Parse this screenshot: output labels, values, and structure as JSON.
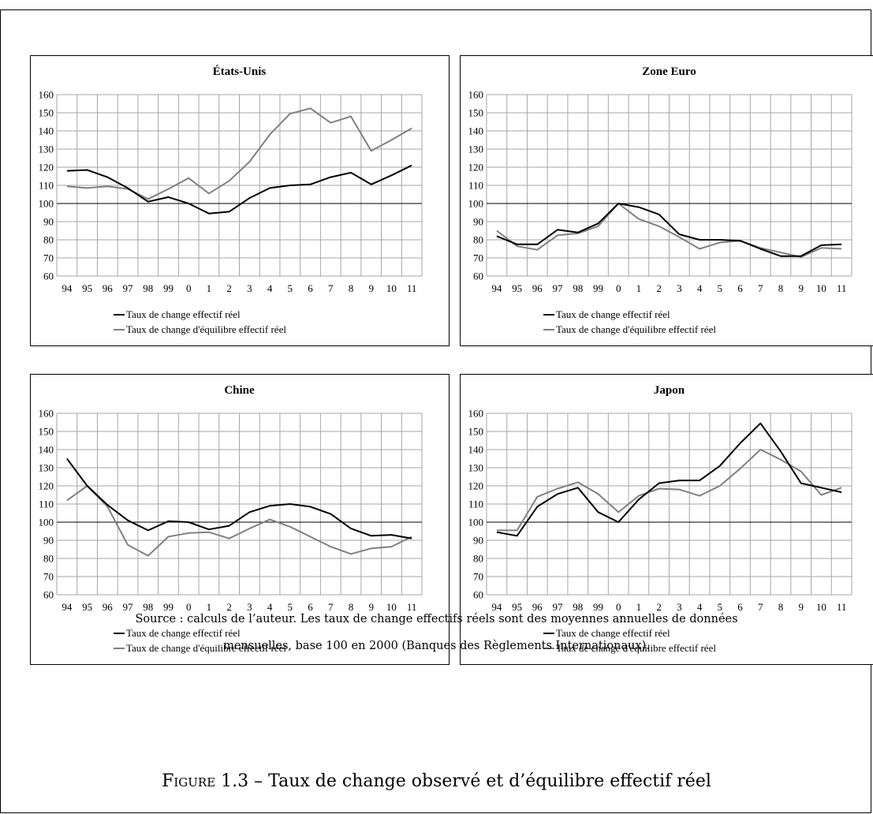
{
  "figure": {
    "source_note_line1": "Source : calculs de l’auteur. Les taux de change effectifs réels sont des moyennes annuelles de données",
    "source_note_line2": "mensuelles, base 100 en 2000 (Banques des Règlements Internationaux).",
    "caption_label": "Figure 1.3",
    "caption_text": " – Taux de change observé et d’équilibre effectif réel"
  },
  "legend": {
    "observed": "Taux de change effectif réel",
    "equilibrium": "Taux de change d'équilibre effectif réel"
  },
  "colors": {
    "observed": "#000000",
    "equilibrium": "#808080",
    "grid": "#a6a6a6",
    "baseline": "#000000"
  },
  "chart_data": [
    {
      "type": "line",
      "title": "États-Unis",
      "categories": [
        "94",
        "95",
        "96",
        "97",
        "98",
        "99",
        "0",
        "1",
        "2",
        "3",
        "4",
        "5",
        "6",
        "7",
        "8",
        "9",
        "10",
        "11"
      ],
      "ylim": [
        60,
        160
      ],
      "yticks": [
        60,
        70,
        80,
        90,
        100,
        110,
        120,
        130,
        140,
        150,
        160
      ],
      "baseline": 100,
      "grid": true,
      "series": [
        {
          "name": "Taux de change effectif réel",
          "values": [
            118,
            118.5,
            114.5,
            108.5,
            101,
            103.5,
            100,
            94.5,
            95.5,
            103,
            108.5,
            110,
            110.5,
            114.5,
            117,
            110.5,
            115.5,
            121
          ]
        },
        {
          "name": "Taux de change d'équilibre effectif réel",
          "values": [
            109.5,
            108.5,
            109.5,
            108,
            102.5,
            108,
            114,
            105.5,
            112.5,
            123,
            138,
            149.5,
            152.5,
            144.5,
            148,
            129,
            135,
            141.5
          ]
        }
      ]
    },
    {
      "type": "line",
      "title": "Zone Euro",
      "categories": [
        "94",
        "95",
        "96",
        "97",
        "98",
        "99",
        "0",
        "1",
        "2",
        "3",
        "4",
        "5",
        "6",
        "7",
        "8",
        "9",
        "10",
        "11"
      ],
      "ylim": [
        60,
        160
      ],
      "yticks": [
        60,
        70,
        80,
        90,
        100,
        110,
        120,
        130,
        140,
        150,
        160
      ],
      "baseline": 100,
      "grid": true,
      "series": [
        {
          "name": "Taux de change effectif réel",
          "values": [
            82,
            77.5,
            77.5,
            85.5,
            84,
            89,
            100,
            98,
            94,
            83,
            80,
            80,
            79.5,
            75,
            71,
            71,
            77,
            77.5
          ]
        },
        {
          "name": "Taux de change d'équilibre effectif réel",
          "values": [
            85,
            76.5,
            74.5,
            82.5,
            83.5,
            87.5,
            100,
            91.5,
            87.5,
            81.5,
            75,
            78.5,
            79.5,
            75.5,
            73,
            70.5,
            75.5,
            75
          ]
        }
      ]
    },
    {
      "type": "line",
      "title": "Chine",
      "categories": [
        "94",
        "95",
        "96",
        "97",
        "98",
        "99",
        "0",
        "1",
        "2",
        "3",
        "4",
        "5",
        "6",
        "7",
        "8",
        "9",
        "10",
        "11"
      ],
      "ylim": [
        60,
        160
      ],
      "yticks": [
        60,
        70,
        80,
        90,
        100,
        110,
        120,
        130,
        140,
        150,
        160
      ],
      "baseline": 100,
      "grid": true,
      "series": [
        {
          "name": "Taux de change effectif réel",
          "values": [
            135,
            120,
            109.5,
            101,
            95.5,
            100.5,
            100,
            96,
            98,
            105.5,
            109,
            110,
            108.5,
            104.5,
            96.5,
            92.5,
            93,
            91
          ]
        },
        {
          "name": "Taux de change d'équilibre effectif réel",
          "values": [
            112,
            120,
            108.5,
            87.5,
            81.5,
            92,
            94,
            94.5,
            91,
            96.5,
            101.5,
            97.5,
            92,
            86.5,
            82.5,
            85.5,
            86.5,
            92
          ]
        }
      ]
    },
    {
      "type": "line",
      "title": "Japon",
      "categories": [
        "94",
        "95",
        "96",
        "97",
        "98",
        "99",
        "0",
        "1",
        "2",
        "3",
        "4",
        "5",
        "6",
        "7",
        "8",
        "9",
        "10",
        "11"
      ],
      "ylim": [
        60,
        160
      ],
      "yticks": [
        60,
        70,
        80,
        90,
        100,
        110,
        120,
        130,
        140,
        150,
        160
      ],
      "baseline": 100,
      "grid": true,
      "series": [
        {
          "name": "Taux de change effectif réel",
          "values": [
            94.5,
            92.5,
            108.5,
            115.5,
            119,
            105.5,
            100,
            112.5,
            121.5,
            123,
            123,
            131,
            143.5,
            154.5,
            139,
            121.5,
            119,
            116.5
          ]
        },
        {
          "name": "Taux de change d'équilibre effectif réel",
          "values": [
            95.5,
            95.5,
            114,
            118.5,
            122,
            115.5,
            105.5,
            114.5,
            118.5,
            118,
            114.5,
            120,
            129.5,
            140,
            134.5,
            128,
            115,
            119
          ]
        }
      ]
    }
  ]
}
